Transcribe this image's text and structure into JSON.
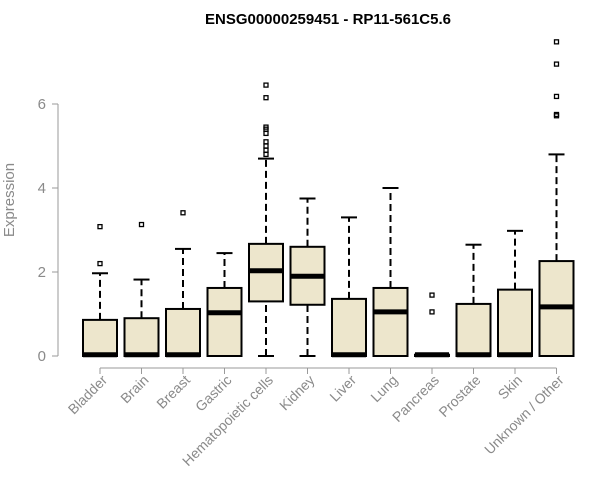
{
  "chart_data": {
    "type": "box",
    "title": "ENSG00000259451 - RP11-561C5.6",
    "xlabel": "",
    "ylabel": "Expression",
    "ylim": [
      0,
      7.6
    ],
    "yticks": [
      "0",
      "2",
      "4",
      "6"
    ],
    "grid": false,
    "legend": "none",
    "colors": {
      "box_fill": "#ede6cc",
      "stroke": "#000000",
      "axis": "#9a9a9a",
      "tick_text": "#8a8a8a"
    },
    "categories": [
      "Bladder",
      "Brain",
      "Breast",
      "Gastric",
      "Hematopoietic cells",
      "Kidney",
      "Liver",
      "Lung",
      "Pancreas",
      "Prostate",
      "Skin",
      "Unknown / Other"
    ],
    "boxes": [
      {
        "name": "Bladder",
        "min": 0,
        "q1": 0,
        "median": 0.03,
        "q3": 0.86,
        "max": 1.97,
        "outliers": [
          2.2,
          3.08
        ]
      },
      {
        "name": "Brain",
        "min": 0,
        "q1": 0,
        "median": 0.03,
        "q3": 0.9,
        "max": 1.82,
        "outliers": [
          3.13
        ]
      },
      {
        "name": "Breast",
        "min": 0,
        "q1": 0,
        "median": 0.03,
        "q3": 1.12,
        "max": 2.55,
        "outliers": [
          3.41
        ]
      },
      {
        "name": "Gastric",
        "min": 0,
        "q1": 0,
        "median": 1.03,
        "q3": 1.62,
        "max": 2.45,
        "outliers": []
      },
      {
        "name": "Hematopoietic cells",
        "min": 0,
        "q1": 1.3,
        "median": 2.03,
        "q3": 2.67,
        "max": 4.7,
        "outliers": [
          4.8,
          4.9,
          5.0,
          5.1,
          5.3,
          5.4,
          5.45,
          6.15,
          6.45
        ]
      },
      {
        "name": "Kidney",
        "min": 0,
        "q1": 1.22,
        "median": 1.9,
        "q3": 2.6,
        "max": 3.75,
        "outliers": []
      },
      {
        "name": "Liver",
        "min": 0,
        "q1": 0,
        "median": 0.03,
        "q3": 1.36,
        "max": 3.3,
        "outliers": []
      },
      {
        "name": "Lung",
        "min": 0,
        "q1": 0,
        "median": 1.05,
        "q3": 1.62,
        "max": 4.0,
        "outliers": []
      },
      {
        "name": "Pancreas",
        "min": 0,
        "q1": 0,
        "median": 0.03,
        "q3": 0.03,
        "max": 0.03,
        "outliers": [
          1.05,
          1.45
        ]
      },
      {
        "name": "Prostate",
        "min": 0,
        "q1": 0,
        "median": 0.03,
        "q3": 1.24,
        "max": 2.65,
        "outliers": []
      },
      {
        "name": "Skin",
        "min": 0,
        "q1": 0,
        "median": 0.03,
        "q3": 1.58,
        "max": 2.98,
        "outliers": []
      },
      {
        "name": "Unknown / Other",
        "min": 0,
        "q1": 0,
        "median": 1.17,
        "q3": 2.26,
        "max": 4.8,
        "outliers": [
          5.72,
          5.75,
          6.18,
          6.95,
          7.48
        ]
      }
    ]
  }
}
